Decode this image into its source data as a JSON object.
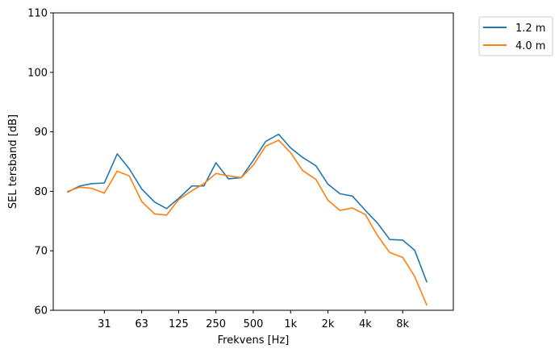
{
  "chart_data": {
    "type": "line",
    "xlabel": "Frekvens [Hz]",
    "ylabel": "SEL tersband [dB]",
    "ylim": [
      60,
      110
    ],
    "yticks": [
      60,
      70,
      80,
      90,
      100,
      110
    ],
    "xscale": "log",
    "xticks": [
      {
        "value": 31.5,
        "label": "31"
      },
      {
        "value": 63,
        "label": "63"
      },
      {
        "value": 125,
        "label": "125"
      },
      {
        "value": 250,
        "label": "250"
      },
      {
        "value": 500,
        "label": "500"
      },
      {
        "value": 1000,
        "label": "1k"
      },
      {
        "value": 2000,
        "label": "2k"
      },
      {
        "value": 4000,
        "label": "4k"
      },
      {
        "value": 8000,
        "label": "8k"
      }
    ],
    "x": [
      16,
      20,
      25,
      31.5,
      40,
      50,
      63,
      80,
      100,
      125,
      160,
      200,
      250,
      315,
      400,
      500,
      630,
      800,
      1000,
      1250,
      1600,
      2000,
      2500,
      3150,
      4000,
      5000,
      6300,
      8000,
      10000,
      12500,
      16000
    ],
    "legend_position": "outside-top-right",
    "grid": false,
    "series": [
      {
        "name": "1.2 m",
        "color": "#1f77b4",
        "values": [
          79.9,
          80.9,
          81.3,
          81.4,
          86.3,
          83.8,
          80.4,
          78.2,
          77.1,
          78.8,
          80.9,
          80.9,
          84.8,
          82.1,
          82.3,
          85.2,
          88.4,
          89.6,
          87.3,
          85.7,
          84.3,
          81.2,
          79.6,
          79.2,
          76.8,
          74.7,
          71.9,
          71.8,
          70.1,
          64.8,
          null
        ],
        "data_note": ""
      },
      {
        "name": "4.0 m",
        "color": "#ff7f0e",
        "values": [
          80.0,
          80.7,
          80.5,
          79.7,
          83.4,
          82.6,
          78.3,
          76.2,
          76.0,
          78.6,
          80.1,
          81.3,
          83.0,
          82.6,
          82.3,
          84.4,
          87.6,
          88.6,
          86.5,
          83.5,
          82.0,
          78.5,
          76.8,
          77.2,
          76.1,
          72.6,
          69.7,
          68.9,
          65.7,
          60.9,
          null
        ]
      }
    ]
  }
}
